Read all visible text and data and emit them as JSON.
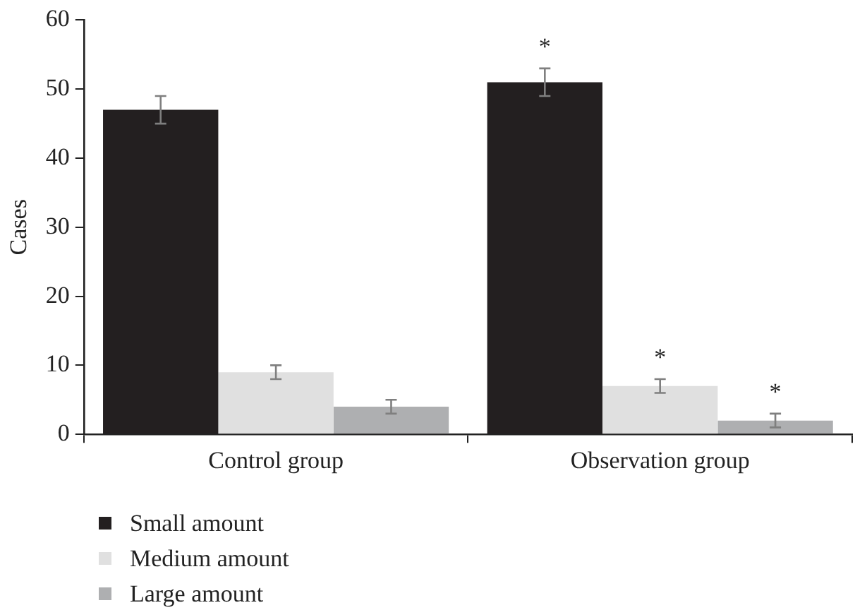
{
  "chart_data": {
    "type": "bar",
    "ylabel": "Cases",
    "categories": [
      "Control group",
      "Observation group"
    ],
    "series": [
      {
        "name": "Small amount",
        "color": "#231f20",
        "values": [
          47,
          51
        ],
        "errors": [
          2,
          2
        ]
      },
      {
        "name": "Medium amount",
        "color": "#e0e0e0",
        "values": [
          9,
          7
        ],
        "errors": [
          1,
          1
        ]
      },
      {
        "name": "Large amount",
        "color": "#aeafb1",
        "values": [
          4,
          2
        ],
        "errors": [
          1,
          1
        ]
      }
    ],
    "ylim": [
      0,
      60
    ],
    "yticks": [
      0,
      10,
      20,
      30,
      40,
      50,
      60
    ],
    "grid": false,
    "legend": "bottom left",
    "annotations": [
      "*",
      "*",
      "*"
    ]
  }
}
